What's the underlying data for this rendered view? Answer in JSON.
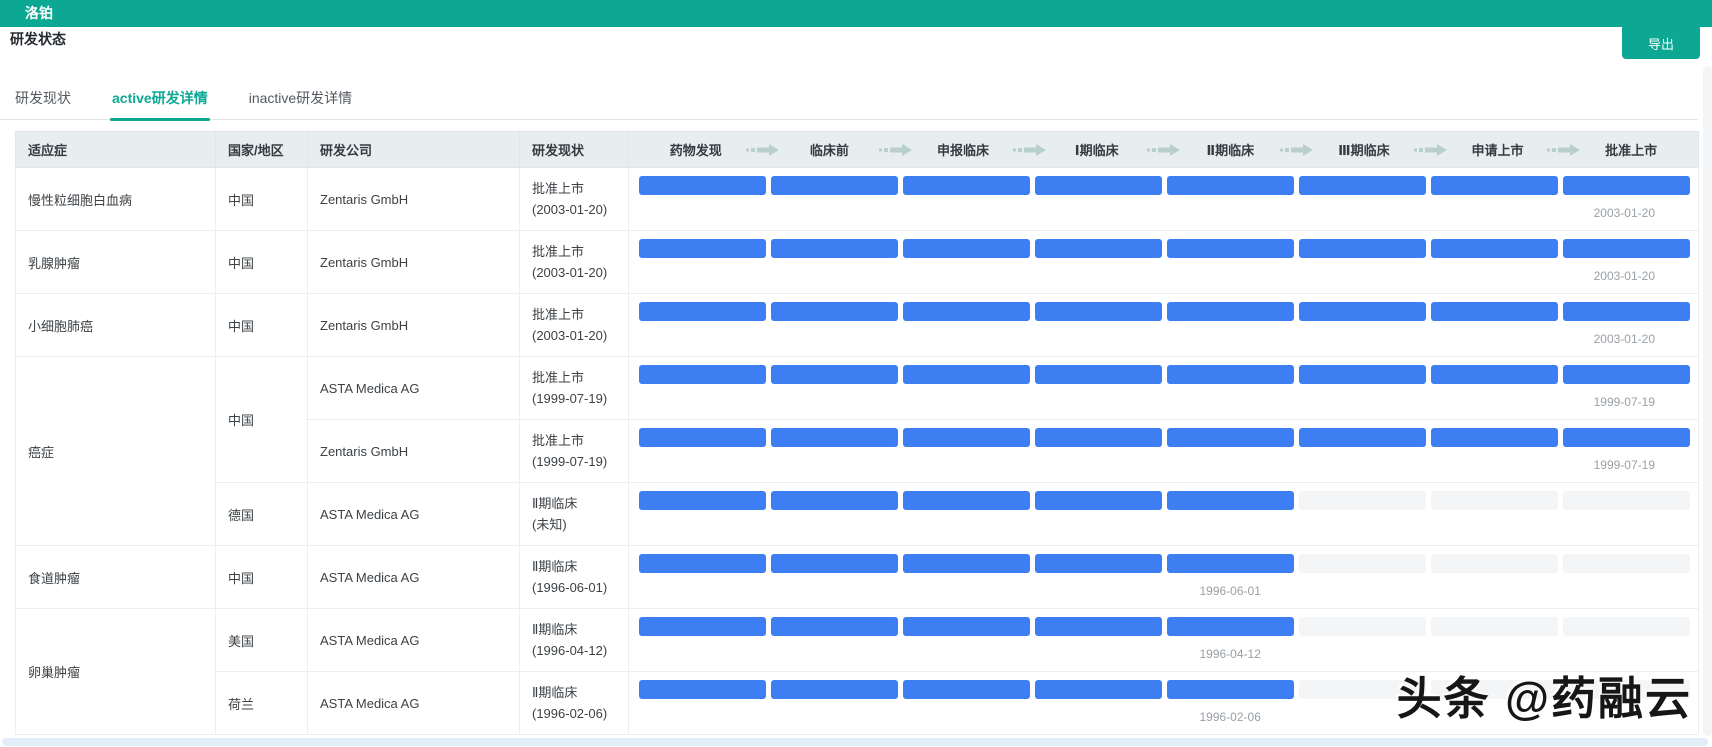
{
  "window": {
    "title": "洛铂"
  },
  "page": {
    "section_title": "研发状态",
    "export_label": "导出"
  },
  "tabs": [
    {
      "label": "研发现状",
      "active": false
    },
    {
      "label": "active研发详情",
      "active": true
    },
    {
      "label": "inactive研发详情",
      "active": false
    }
  ],
  "table": {
    "columns": [
      "适应症",
      "国家/地区",
      "研发公司",
      "研发现状"
    ],
    "stages": [
      "药物发现",
      "临床前",
      "申报临床",
      "Ⅰ期临床",
      "Ⅱ期临床",
      "Ⅲ期临床",
      "申请上市",
      "批准上市"
    ],
    "stage_count": 8,
    "rows": [
      {
        "indication": "慢性粒细胞白血病",
        "indication_rowspan": 1,
        "country": "中国",
        "country_rowspan": 1,
        "company": "Zentaris GmbH",
        "status": "批准上市",
        "status_date": "(2003-01-20)",
        "stages_done": 8,
        "bar_date": "2003-01-20"
      },
      {
        "indication": "乳腺肿瘤",
        "indication_rowspan": 1,
        "country": "中国",
        "country_rowspan": 1,
        "company": "Zentaris GmbH",
        "status": "批准上市",
        "status_date": "(2003-01-20)",
        "stages_done": 8,
        "bar_date": "2003-01-20"
      },
      {
        "indication": "小细胞肺癌",
        "indication_rowspan": 1,
        "country": "中国",
        "country_rowspan": 1,
        "company": "Zentaris GmbH",
        "status": "批准上市",
        "status_date": "(2003-01-20)",
        "stages_done": 8,
        "bar_date": "2003-01-20"
      },
      {
        "indication": "癌症",
        "indication_rowspan": 3,
        "country": "中国",
        "country_rowspan": 2,
        "company": "ASTA Medica AG",
        "status": "批准上市",
        "status_date": "(1999-07-19)",
        "stages_done": 8,
        "bar_date": "1999-07-19"
      },
      {
        "company": "Zentaris GmbH",
        "status": "批准上市",
        "status_date": "(1999-07-19)",
        "stages_done": 8,
        "bar_date": "1999-07-19"
      },
      {
        "country": "德国",
        "country_rowspan": 1,
        "company": "ASTA Medica AG",
        "status": "Ⅱ期临床",
        "status_date": "(未知)",
        "stages_done": 5,
        "bar_date": ""
      },
      {
        "indication": "食道肿瘤",
        "indication_rowspan": 1,
        "country": "中国",
        "country_rowspan": 1,
        "company": "ASTA Medica AG",
        "status": "Ⅱ期临床",
        "status_date": "(1996-06-01)",
        "stages_done": 5,
        "bar_date": "1996-06-01"
      },
      {
        "indication": "卵巢肿瘤",
        "indication_rowspan": 2,
        "country": "美国",
        "country_rowspan": 1,
        "company": "ASTA Medica AG",
        "status": "Ⅱ期临床",
        "status_date": "(1996-04-12)",
        "stages_done": 5,
        "bar_date": "1996-04-12"
      },
      {
        "country": "荷兰",
        "country_rowspan": 1,
        "company": "ASTA Medica AG",
        "status": "Ⅱ期临床",
        "status_date": "(1996-02-06)",
        "stages_done": 5,
        "bar_date": "1996-02-06"
      }
    ]
  },
  "watermark": "头条 @药融云",
  "colors": {
    "teal": "#0ca893",
    "bar_blue": "#3d7ef2",
    "bar_empty": "#f4f5f6",
    "header_bg": "#e8eef0",
    "arrow": "#b9cfc9",
    "date_gray": "#9aa0a5"
  }
}
